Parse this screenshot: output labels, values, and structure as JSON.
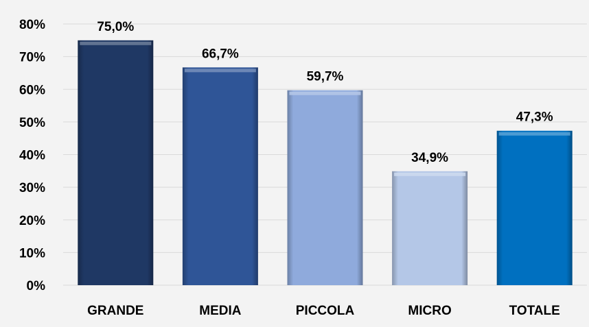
{
  "chart_data": {
    "type": "bar",
    "title": "",
    "xlabel": "",
    "ylabel": "",
    "categories": [
      "GRANDE",
      "MEDIA",
      "PICCOLA",
      "MICRO",
      "TOTALE"
    ],
    "values": [
      75.0,
      66.7,
      59.7,
      34.9,
      47.3
    ],
    "value_labels": [
      "75,0%",
      "66,7%",
      "59,7%",
      "34,9%",
      "47,3%"
    ],
    "ylim": [
      0,
      80
    ],
    "y_ticks": [
      0,
      10,
      20,
      30,
      40,
      50,
      60,
      70,
      80
    ],
    "y_tick_labels": [
      "0%",
      "10%",
      "20%",
      "30%",
      "40%",
      "50%",
      "60%",
      "70%",
      "80%"
    ],
    "grid": true,
    "legend": "none",
    "bar_colors": [
      "#1f3864",
      "#2f5597",
      "#8faadc",
      "#b4c7e7",
      "#0070c0"
    ]
  }
}
